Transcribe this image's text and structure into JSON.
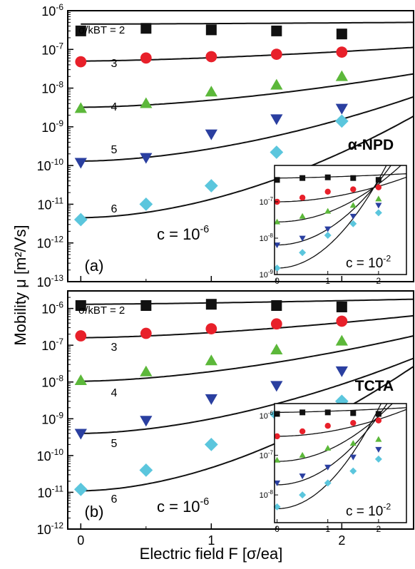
{
  "figure": {
    "ylabel": "Mobility μ [m²/Vs]",
    "xlabel": "Electric field F [σ/ea]"
  },
  "chart_data": [
    {
      "type": "scatter",
      "panel_label": "(a)",
      "material": "α-NPD",
      "concentration_label": "c = 10",
      "concentration_exp": "-6",
      "x_ticks": [
        "0",
        "1",
        "2"
      ],
      "y_scale": "log",
      "ylim": [
        1e-13,
        1e-06
      ],
      "xlim": [
        -0.1,
        2.55
      ],
      "y_tick_exponents": [
        -13,
        -12,
        -11,
        -10,
        -9,
        -8,
        -7,
        -6
      ],
      "series": [
        {
          "label": "σ/kBT = 2",
          "marker": "square",
          "color": "#111111",
          "x": [
            0,
            0.5,
            1,
            1.5,
            2
          ],
          "y": [
            3e-07,
            3.5e-07,
            3.2e-07,
            3e-07,
            2.5e-07
          ],
          "fit": {
            "mu0": 4.5e-07,
            "a": 0.04,
            "b": 0.3
          }
        },
        {
          "label": "3",
          "marker": "circle",
          "color": "#e8202a",
          "x": [
            0,
            0.5,
            1,
            1.5,
            2
          ],
          "y": [
            4.8e-08,
            6e-08,
            6.5e-08,
            7.5e-08,
            8.5e-08
          ],
          "fit": {
            "mu0": 5e-08,
            "a": 0.3,
            "b": 0.5
          }
        },
        {
          "label": "4",
          "marker": "triangle",
          "color": "#5cb83a",
          "x": [
            0,
            0.5,
            1,
            1.5,
            2
          ],
          "y": [
            3e-09,
            4e-09,
            8e-09,
            1.2e-08,
            2e-08
          ],
          "fit": {
            "mu0": 3.2e-09,
            "a": 0.7,
            "b": 0.65
          }
        },
        {
          "label": "5",
          "marker": "triangle-down",
          "color": "#2a3fa0",
          "x": [
            0,
            0.5,
            1,
            1.5,
            2
          ],
          "y": [
            1.2e-10,
            1.6e-10,
            6.5e-10,
            1.6e-09,
            3e-09
          ],
          "fit": {
            "mu0": 1.3e-10,
            "a": 1.3,
            "b": 0.75
          }
        },
        {
          "label": "6",
          "marker": "diamond",
          "color": "#5bc6dd",
          "x": [
            0,
            0.5,
            1,
            1.5,
            2
          ],
          "y": [
            4e-12,
            1e-11,
            3e-11,
            2.2e-10,
            1.4e-09
          ],
          "fit": {
            "mu0": 4.5e-12,
            "a": 2.0,
            "b": 0.82
          }
        }
      ],
      "inset": {
        "concentration_label": "c = 10",
        "concentration_exp": "-2",
        "x_ticks": [
          "0",
          "1",
          "2"
        ],
        "ylim": [
          1e-09,
          1e-06
        ],
        "xlim": [
          -0.05,
          2.55
        ],
        "y_tick_exponents": [
          -9,
          -8,
          -7
        ],
        "series": [
          {
            "marker": "square",
            "color": "#111111",
            "x": [
              0,
              0.5,
              1,
              1.5,
              2
            ],
            "y": [
              4e-07,
              4.5e-07,
              4.7e-07,
              4.5e-07,
              4e-07
            ],
            "fit": {
              "mu0": 4.5e-07,
              "a": 0.1,
              "b": 0.5
            }
          },
          {
            "marker": "circle",
            "color": "#e8202a",
            "x": [
              0,
              0.5,
              1,
              1.5,
              2
            ],
            "y": [
              1e-07,
              1.3e-07,
              1.9e-07,
              2.2e-07,
              2.5e-07
            ],
            "fit": {
              "mu0": 1e-07,
              "a": 0.5,
              "b": 0.9
            }
          },
          {
            "marker": "triangle",
            "color": "#5cb83a",
            "x": [
              0,
              0.5,
              1,
              1.5,
              2
            ],
            "y": [
              2.8e-08,
              4e-08,
              5.5e-08,
              8e-08,
              1.2e-07
            ],
            "fit": {
              "mu0": 2.8e-08,
              "a": 1.2,
              "b": 1.0
            }
          },
          {
            "marker": "triangle-down",
            "color": "#2a3fa0",
            "x": [
              0,
              0.5,
              1,
              1.5,
              2
            ],
            "y": [
              6.5e-09,
              1e-08,
              1.8e-08,
              4e-08,
              8e-08
            ],
            "fit": {
              "mu0": 6.5e-09,
              "a": 2.0,
              "b": 1.0
            }
          },
          {
            "marker": "diamond",
            "color": "#5bc6dd",
            "x": [
              0,
              0.5,
              1,
              1.5,
              2
            ],
            "y": [
              1.5e-09,
              4e-09,
              1.2e-08,
              2.5e-08,
              5e-08
            ],
            "fit": {
              "mu0": 1.5e-09,
              "a": 2.8,
              "b": 1.0
            }
          }
        ]
      }
    },
    {
      "type": "scatter",
      "panel_label": "(b)",
      "material": "TCTA",
      "concentration_label": "c = 10",
      "concentration_exp": "-6",
      "x_ticks": [
        "0",
        "1",
        "2"
      ],
      "y_scale": "log",
      "ylim": [
        1e-12,
        3e-06
      ],
      "xlim": [
        -0.1,
        2.55
      ],
      "y_tick_exponents": [
        -12,
        -11,
        -10,
        -9,
        -8,
        -7,
        -6
      ],
      "series": [
        {
          "label": "σ/kBT = 2",
          "marker": "square",
          "color": "#111111",
          "x": [
            0,
            0.5,
            1,
            1.5,
            2
          ],
          "y": [
            1.2e-06,
            1.2e-06,
            1.3e-06,
            1.2e-06,
            1.1e-06
          ],
          "fit": {
            "mu0": 1.3e-06,
            "a": 0.12,
            "b": 0.4
          }
        },
        {
          "label": "3",
          "marker": "circle",
          "color": "#e8202a",
          "x": [
            0,
            0.5,
            1,
            1.5,
            2
          ],
          "y": [
            1.8e-07,
            2.1e-07,
            2.8e-07,
            3.8e-07,
            4.5e-07
          ],
          "fit": {
            "mu0": 1.6e-07,
            "a": 0.5,
            "b": 0.55
          }
        },
        {
          "label": "4",
          "marker": "triangle",
          "color": "#5cb83a",
          "x": [
            0,
            0.5,
            1,
            1.5,
            2
          ],
          "y": [
            1.1e-08,
            1.9e-08,
            3.8e-08,
            7.5e-08,
            1.3e-07
          ],
          "fit": {
            "mu0": 1.05e-08,
            "a": 1.0,
            "b": 0.65
          }
        },
        {
          "label": "5",
          "marker": "triangle-down",
          "color": "#2a3fa0",
          "x": [
            0,
            0.5,
            1,
            1.5,
            2
          ],
          "y": [
            4e-10,
            9e-10,
            3.5e-09,
            8e-09,
            2e-08
          ],
          "fit": {
            "mu0": 4e-10,
            "a": 1.6,
            "b": 0.75
          }
        },
        {
          "label": "6",
          "marker": "diamond",
          "color": "#5bc6dd",
          "x": [
            0,
            0.5,
            1,
            1.5,
            2
          ],
          "y": [
            1.2e-11,
            4e-11,
            2e-10,
            1.3e-09,
            3e-09
          ],
          "fit": {
            "mu0": 1.1e-11,
            "a": 2.6,
            "b": 0.8
          }
        }
      ],
      "inset": {
        "concentration_label": "c = 10",
        "concentration_exp": "-2",
        "x_ticks": [
          "0",
          "1",
          "2"
        ],
        "ylim": [
          2e-09,
          2e-06
        ],
        "xlim": [
          -0.05,
          2.55
        ],
        "y_tick_exponents": [
          -8,
          -7,
          -6
        ],
        "series": [
          {
            "marker": "square",
            "color": "#111111",
            "x": [
              0,
              0.5,
              1,
              1.5,
              2
            ],
            "y": [
              1.1e-06,
              1.2e-06,
              1.2e-06,
              1.15e-06,
              1.1e-06
            ],
            "fit": {
              "mu0": 1.2e-06,
              "a": 0.1,
              "b": 0.5
            }
          },
          {
            "marker": "circle",
            "color": "#e8202a",
            "x": [
              0,
              0.5,
              1,
              1.5,
              2
            ],
            "y": [
              3e-07,
              4e-07,
              5.5e-07,
              6.5e-07,
              7.5e-07
            ],
            "fit": {
              "mu0": 3e-07,
              "a": 0.5,
              "b": 0.9
            }
          },
          {
            "marker": "triangle",
            "color": "#5cb83a",
            "x": [
              0,
              0.5,
              1,
              1.5,
              2
            ],
            "y": [
              7.5e-08,
              1e-07,
              1.5e-07,
              2e-07,
              2.5e-07
            ],
            "fit": {
              "mu0": 7e-08,
              "a": 1.3,
              "b": 1.0
            }
          },
          {
            "marker": "triangle-down",
            "color": "#2a3fa0",
            "x": [
              0,
              0.5,
              1,
              1.5,
              2
            ],
            "y": [
              2e-08,
              3e-08,
              5e-08,
              9e-08,
              1.4e-07
            ],
            "fit": {
              "mu0": 1.8e-08,
              "a": 2.0,
              "b": 1.0
            }
          },
          {
            "marker": "diamond",
            "color": "#5bc6dd",
            "x": [
              0,
              0.5,
              1,
              1.5,
              2
            ],
            "y": [
              5e-09,
              1e-08,
              2e-08,
              4e-08,
              8e-08
            ],
            "fit": {
              "mu0": 4.5e-09,
              "a": 2.9,
              "b": 1.0
            }
          }
        ]
      }
    }
  ]
}
